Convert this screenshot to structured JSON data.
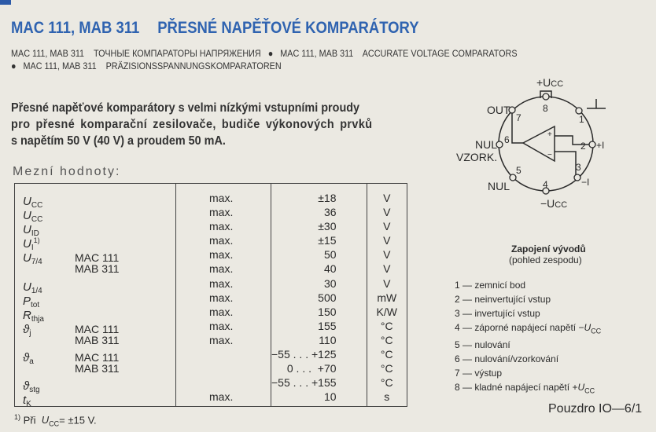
{
  "header": {
    "title_models": "MAC 111, MAB 311",
    "title_text": "PŘESNÉ NAPĚŤOVÉ KOMPARÁTORY",
    "subtitles": [
      {
        "models": "MAC 111, MAB 311",
        "text": "ТОЧНЫЕ КОМПАРАТОРЫ НАПРЯЖЕНИЯ"
      },
      {
        "models": "MAC 111, MAB 311",
        "text": "ACCURATE VOLTAGE COMPARATORS"
      },
      {
        "models": "MAC 111, MAB 311",
        "text": "PRÄZISIONSSPANNUNGSKOMPARATOREN"
      }
    ],
    "bullet": "●",
    "accent_color": "#2f63b0"
  },
  "intro": [
    "Přesné napěťové komparátory s velmi nízkými vstupními proudy",
    "pro přesné komparační zesilovače, budiče výkonových prvků",
    "s napětím 50 V (40 V) a proudem 50 mA."
  ],
  "limits": {
    "heading": "Mezní hodnoty:",
    "rows": [
      {
        "sym": "U",
        "sub": "CC",
        "sup": "",
        "variant": "",
        "qual": "max.",
        "value": "±18",
        "unit": "V"
      },
      {
        "sym": "U",
        "sub": "CC",
        "sup": "",
        "variant": "",
        "qual": "max.",
        "value": "36",
        "unit": "V"
      },
      {
        "sym": "U",
        "sub": "ID",
        "sup": "",
        "variant": "",
        "qual": "max.",
        "value": "±30",
        "unit": "V"
      },
      {
        "sym": "U",
        "sub": "I",
        "sup": "1)",
        "variant": "",
        "qual": "max.",
        "value": "±15",
        "unit": "V"
      },
      {
        "sym": "U",
        "sub": "7/4",
        "sup": "",
        "variant": "MAC 111",
        "qual": "max.",
        "value": "50",
        "unit": "V"
      },
      {
        "sym": "",
        "sub": "",
        "sup": "",
        "variant": "MAB 311",
        "qual": "max.",
        "value": "40",
        "unit": "V"
      },
      {
        "sym": "U",
        "sub": "1/4",
        "sup": "",
        "variant": "",
        "qual": "max.",
        "value": "30",
        "unit": "V"
      },
      {
        "sym": "P",
        "sub": "tot",
        "sup": "",
        "variant": "",
        "qual": "max.",
        "value": "500",
        "unit": "mW"
      },
      {
        "sym": "R",
        "sub": "thja",
        "sup": "",
        "variant": "",
        "qual": "max.",
        "value": "150",
        "unit": "K/W"
      },
      {
        "sym": "ϑ",
        "sub": "j",
        "sup": "",
        "variant": "MAC 111",
        "qual": "max.",
        "value": "155",
        "unit": "°C"
      },
      {
        "sym": "",
        "sub": "",
        "sup": "",
        "variant": "MAB 311",
        "qual": "max.",
        "value": "110",
        "unit": "°C"
      },
      {
        "sym": "ϑ",
        "sub": "a",
        "sup": "",
        "variant": "MAC 111",
        "qual": "",
        "value": "−55 . . . +125",
        "unit": "°C"
      },
      {
        "sym": "",
        "sub": "",
        "sup": "",
        "variant": "MAB 311",
        "qual": "",
        "value": "0 . . .  +70",
        "unit": "°C"
      },
      {
        "sym": "ϑ",
        "sub": "stg",
        "sup": "",
        "variant": "",
        "qual": "",
        "value": "−55 . . . +155",
        "unit": "°C"
      },
      {
        "sym": "t",
        "sub": "K",
        "sup": "",
        "variant": "",
        "qual": "max.",
        "value": "10",
        "unit": "s"
      }
    ],
    "footnote": {
      "mark": "1)",
      "pre": "Při",
      "sym": "U",
      "sub": "CC",
      "post": "= ±15 V."
    }
  },
  "pinout": {
    "labels": {
      "vcc_plus": "+U",
      "vcc_plus_sub": "CC",
      "out": "OUT",
      "nul6": "NUL",
      "vzork": "VZORK.",
      "nul5": "NUL",
      "vcc_minus": "−U",
      "vcc_minus_sub": "CC",
      "in_plus": "+I",
      "in_minus": "−I",
      "amp_plus": "+",
      "amp_minus": "−"
    },
    "pin_numbers": [
      "1",
      "2",
      "3",
      "4",
      "5",
      "6",
      "7",
      "8"
    ],
    "caption": "Zapojení vývodů",
    "caption_sub": "(pohled zespodu)",
    "legend": [
      {
        "text": "1 — zemnicí bod"
      },
      {
        "text": "2 — neinvertující vstup"
      },
      {
        "text": "3 — invertující vstup"
      },
      {
        "text": "4 — záporné napájecí napětí −",
        "sym": "U",
        "sub": "CC"
      },
      {
        "text": "5 — nulování"
      },
      {
        "text": "6 — nulování/vzorkování"
      },
      {
        "text": "7 — výstup"
      },
      {
        "text": "8 — kladné napájecí napětí +",
        "sym": "U",
        "sub": "CC"
      }
    ],
    "package": "Pouzdro IO—6/1"
  }
}
